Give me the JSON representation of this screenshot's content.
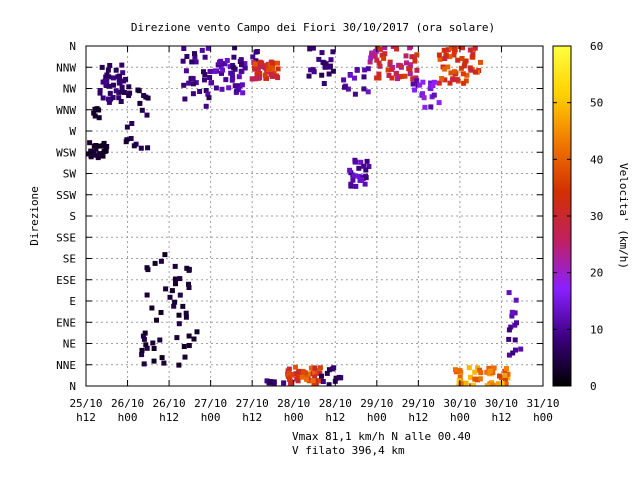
{
  "chart_data": {
    "type": "scatter",
    "title": "Direzione vento Campo dei Fiori 30/10/2017 (ora solare)",
    "ylabel": "Direzione",
    "colorbar_label": "Velocita' (km/h)",
    "colorbar_ticks": [
      0,
      10,
      20,
      30,
      40,
      50,
      60
    ],
    "colorbar_range": [
      0,
      60
    ],
    "colormap": [
      "#000000",
      "#3c0080",
      "#8a20ff",
      "#c02060",
      "#d23000",
      "#f07800",
      "#ffd000",
      "#ffff40"
    ],
    "x_tick_labels": [
      [
        "25/10",
        "h12"
      ],
      [
        "26/10",
        "h00"
      ],
      [
        "26/10",
        "h12"
      ],
      [
        "27/10",
        "h00"
      ],
      [
        "27/10",
        "h12"
      ],
      [
        "28/10",
        "h00"
      ],
      [
        "28/10",
        "h12"
      ],
      [
        "29/10",
        "h00"
      ],
      [
        "29/10",
        "h12"
      ],
      [
        "30/10",
        "h00"
      ],
      [
        "30/10",
        "h12"
      ],
      [
        "31/10",
        "h00"
      ]
    ],
    "xlim_hours": [
      0,
      132
    ],
    "y_tick_labels": [
      "N",
      "NNE",
      "NE",
      "ENE",
      "E",
      "ESE",
      "SE",
      "SSE",
      "S",
      "SSW",
      "SW",
      "WSW",
      "W",
      "WNW",
      "NW",
      "NNW",
      "N"
    ],
    "ylim_deg": [
      0,
      360
    ],
    "grid": true,
    "clusters": [
      {
        "hours": [
          0,
          6
        ],
        "deg": [
          240,
          260
        ],
        "speed": [
          2,
          4
        ],
        "n": 25
      },
      {
        "hours": [
          0,
          4
        ],
        "deg": [
          280,
          300
        ],
        "speed": [
          2,
          4
        ],
        "n": 6
      },
      {
        "hours": [
          4,
          12
        ],
        "deg": [
          300,
          340
        ],
        "speed": [
          5,
          9
        ],
        "n": 40
      },
      {
        "hours": [
          10,
          18
        ],
        "deg": [
          250,
          320
        ],
        "speed": [
          3,
          6
        ],
        "n": 20
      },
      {
        "hours": [
          16,
          30
        ],
        "deg": [
          20,
          150
        ],
        "speed": [
          2,
          5
        ],
        "n": 45
      },
      {
        "hours": [
          26,
          34
        ],
        "deg": [
          40,
          60
        ],
        "speed": [
          2,
          4
        ],
        "n": 6
      },
      {
        "hours": [
          28,
          36
        ],
        "deg": [
          295,
          360
        ],
        "speed": [
          6,
          12
        ],
        "n": 30
      },
      {
        "hours": [
          36,
          46
        ],
        "deg": [
          310,
          345
        ],
        "speed": [
          8,
          14
        ],
        "n": 40
      },
      {
        "hours": [
          42,
          50
        ],
        "deg": [
          335,
          360
        ],
        "speed": [
          5,
          10
        ],
        "n": 12
      },
      {
        "hours": [
          48,
          56
        ],
        "deg": [
          325,
          345
        ],
        "speed": [
          25,
          40
        ],
        "n": 45
      },
      {
        "hours": [
          52,
          58
        ],
        "deg": [
          0,
          8
        ],
        "speed": [
          4,
          9
        ],
        "n": 8
      },
      {
        "hours": [
          58,
          68
        ],
        "deg": [
          2,
          20
        ],
        "speed": [
          28,
          42
        ],
        "n": 45
      },
      {
        "hours": [
          64,
          72
        ],
        "deg": [
          320,
          360
        ],
        "speed": [
          5,
          10
        ],
        "n": 20
      },
      {
        "hours": [
          68,
          74
        ],
        "deg": [
          0,
          20
        ],
        "speed": [
          5,
          9
        ],
        "n": 12
      },
      {
        "hours": [
          74,
          82
        ],
        "deg": [
          300,
          340
        ],
        "speed": [
          8,
          14
        ],
        "n": 15
      },
      {
        "hours": [
          76,
          82
        ],
        "deg": [
          210,
          240
        ],
        "speed": [
          8,
          14
        ],
        "n": 25
      },
      {
        "hours": [
          82,
          96
        ],
        "deg": [
          325,
          360
        ],
        "speed": [
          20,
          36
        ],
        "n": 55
      },
      {
        "hours": [
          94,
          102
        ],
        "deg": [
          295,
          325
        ],
        "speed": [
          10,
          20
        ],
        "n": 20
      },
      {
        "hours": [
          102,
          114
        ],
        "deg": [
          320,
          360
        ],
        "speed": [
          28,
          42
        ],
        "n": 55
      },
      {
        "hours": [
          106,
          122
        ],
        "deg": [
          0,
          20
        ],
        "speed": [
          36,
          52
        ],
        "n": 55
      },
      {
        "hours": [
          122,
          126
        ],
        "deg": [
          20,
          100
        ],
        "speed": [
          8,
          14
        ],
        "n": 15
      }
    ]
  },
  "footer": {
    "line1": "Vmax 81,1 km/h N alle 00.40",
    "line2": "V filato 396,4 km"
  }
}
